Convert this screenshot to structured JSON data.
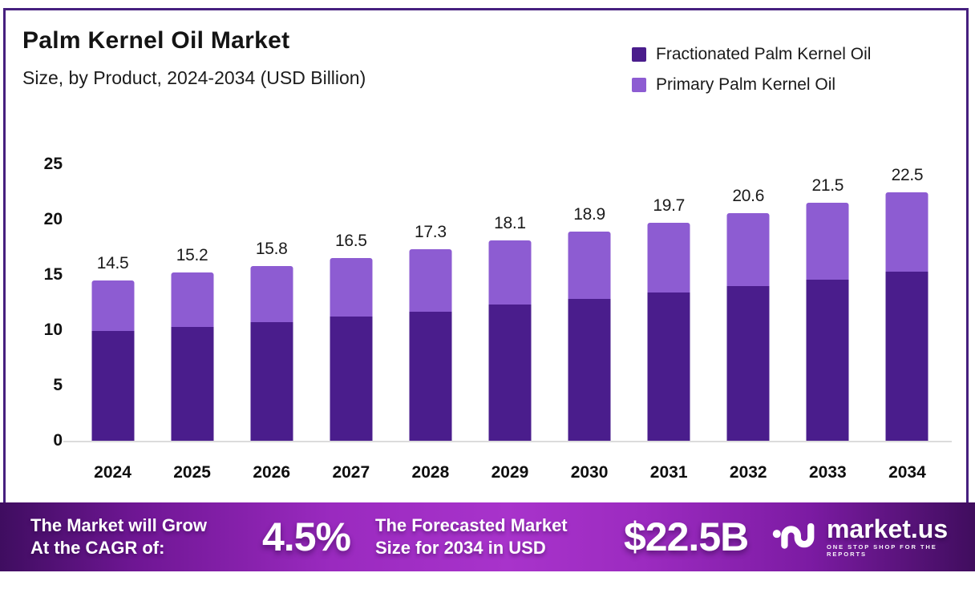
{
  "header": {
    "title": "Palm Kernel Oil Market",
    "subtitle": "Size, by Product, 2024-2034 (USD Billion)"
  },
  "legend": {
    "items": [
      {
        "label": "Fractionated Palm Kernel Oil",
        "color": "#4a1d8c"
      },
      {
        "label": "Primary Palm Kernel Oil",
        "color": "#8d5cd2"
      }
    ]
  },
  "chart_data": {
    "type": "bar",
    "subtype": "stacked",
    "title": "Palm Kernel Oil Market",
    "subtitle": "Size, by Product, 2024-2034 (USD Billion)",
    "unit": "USD Billion",
    "categories": [
      "2024",
      "2025",
      "2026",
      "2027",
      "2028",
      "2029",
      "2030",
      "2031",
      "2032",
      "2033",
      "2034"
    ],
    "series": [
      {
        "name": "Fractionated Palm Kernel Oil",
        "color": "#4a1d8c",
        "values": [
          9.9,
          10.3,
          10.7,
          11.2,
          11.7,
          12.3,
          12.8,
          13.4,
          14.0,
          14.6,
          15.3
        ]
      },
      {
        "name": "Primary Palm Kernel Oil",
        "color": "#8d5cd2",
        "values": [
          4.6,
          4.9,
          5.1,
          5.3,
          5.6,
          5.8,
          6.1,
          6.3,
          6.6,
          6.9,
          7.2
        ]
      }
    ],
    "totals": [
      14.5,
      15.2,
      15.8,
      16.5,
      17.3,
      18.1,
      18.9,
      19.7,
      20.6,
      21.5,
      22.5
    ],
    "total_labels": [
      "14.5",
      "15.2",
      "15.8",
      "16.5",
      "17.3",
      "18.1",
      "18.9",
      "19.7",
      "20.6",
      "21.5",
      "22.5"
    ],
    "yticks": [
      0,
      5,
      10,
      15,
      20,
      25
    ],
    "ylim": [
      0,
      25
    ],
    "grid": "off",
    "legend_position": "top-right"
  },
  "footer": {
    "cagr_line1": "The Market will Grow",
    "cagr_line2": "At the CAGR of:",
    "cagr_value": "4.5%",
    "forecast_line1": "The Forecasted Market",
    "forecast_line2": "Size for 2034 in USD",
    "forecast_value": "$22.5B",
    "brand_name": "market.us",
    "brand_tagline": "ONE STOP SHOP FOR THE REPORTS"
  },
  "colors": {
    "frame_border": "#46207f",
    "series_dark": "#4a1d8c",
    "series_light": "#8d5cd2",
    "axis_line": "#dcdcdc",
    "footer_gradient_edge": "#3f0d60",
    "footer_gradient_center": "#a833cb"
  }
}
